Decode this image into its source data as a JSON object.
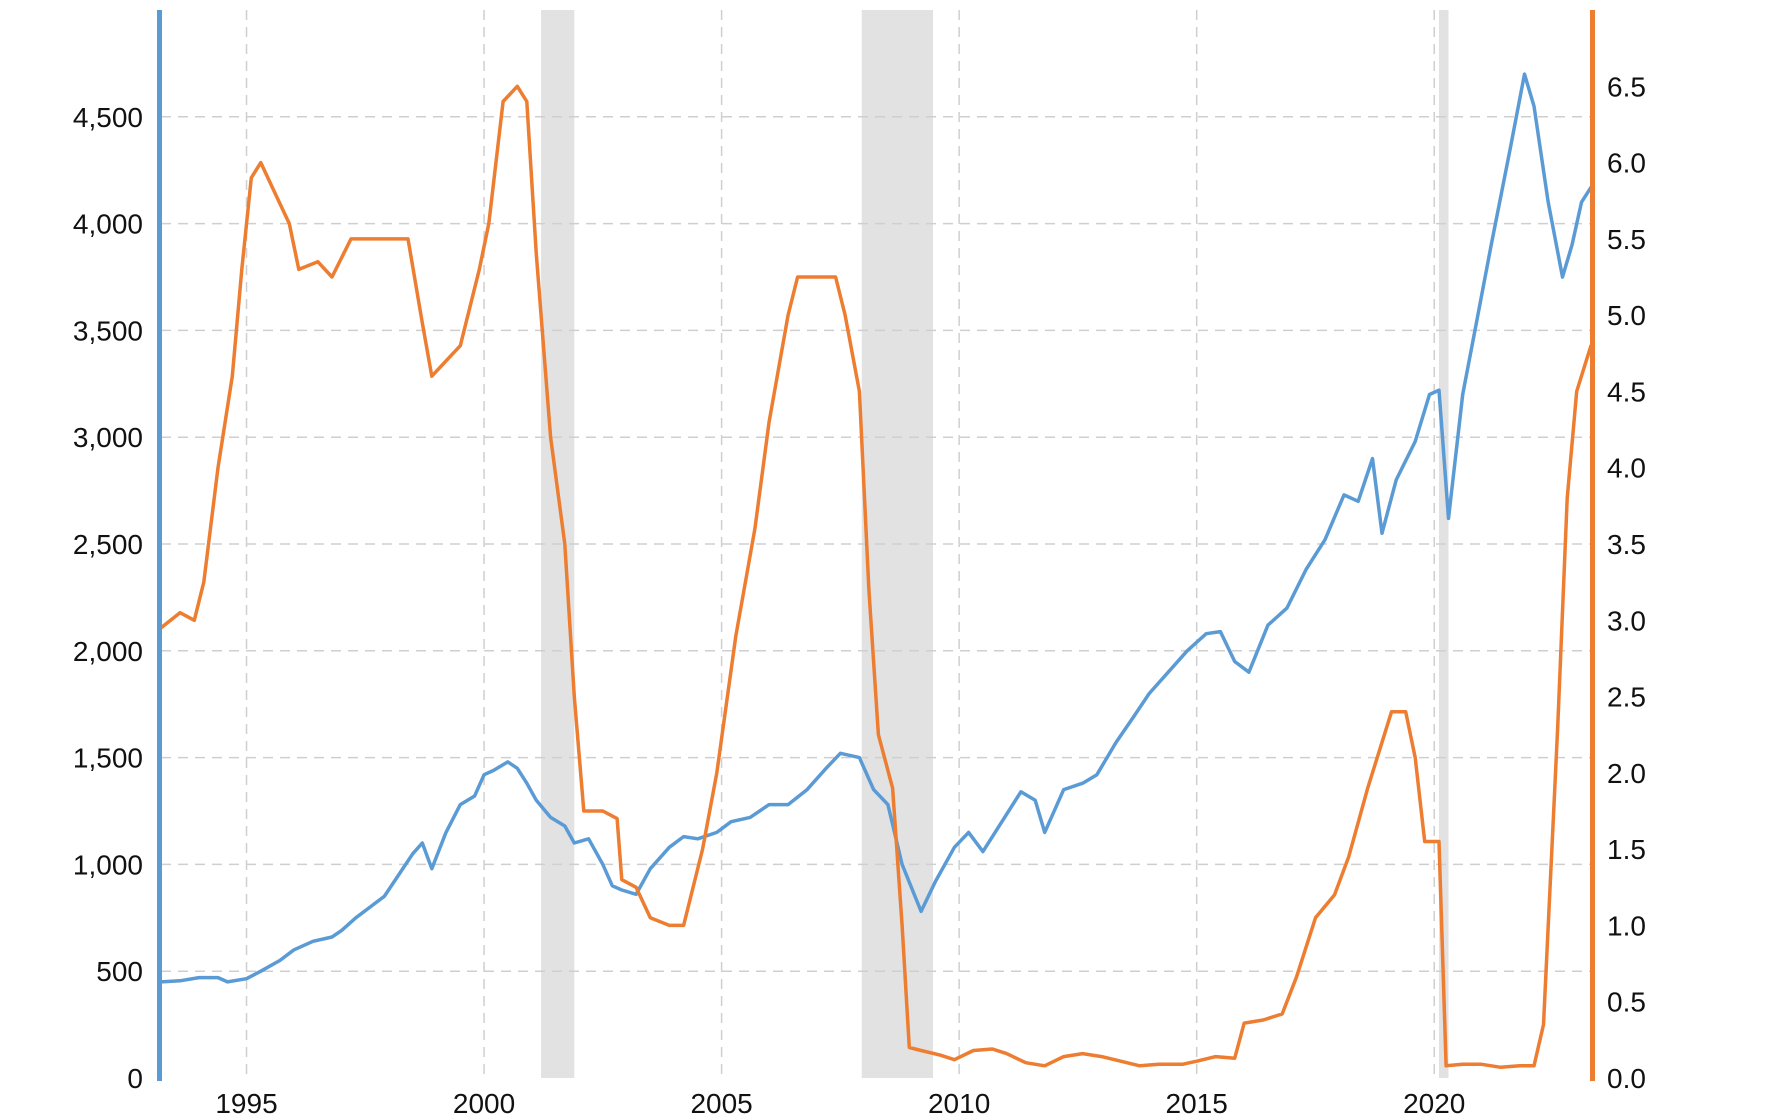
{
  "chart_data": {
    "type": "line",
    "title": "",
    "xlabel": "",
    "ylabel_left": "",
    "ylabel_right": "",
    "xlim": [
      1993.2,
      2023.3
    ],
    "ylim_left": [
      0,
      5000
    ],
    "ylim_right": [
      0,
      7.0
    ],
    "x_ticks": [
      "1995",
      "2000",
      "2005",
      "2010",
      "2015",
      "2020"
    ],
    "y_left_ticks": [
      "0",
      "500",
      "1,000",
      "1,500",
      "2,000",
      "2,500",
      "3,000",
      "3,500",
      "4,000",
      "4,500"
    ],
    "y_right_ticks": [
      "0.0",
      "0.5",
      "1.0",
      "1.5",
      "2.0",
      "2.5",
      "3.0",
      "3.5",
      "4.0",
      "4.5",
      "5.0",
      "5.5",
      "6.0",
      "6.5"
    ],
    "grid": true,
    "legend": "none",
    "recessions": [
      [
        2001.2,
        2001.9
      ],
      [
        2007.95,
        2009.45
      ],
      [
        2020.1,
        2020.3
      ]
    ],
    "series": [
      {
        "axis": "left",
        "color": "#5b9bd5",
        "points": [
          [
            1993.2,
            450
          ],
          [
            1993.6,
            455
          ],
          [
            1994.0,
            470
          ],
          [
            1994.4,
            470
          ],
          [
            1994.6,
            450
          ],
          [
            1995.0,
            465
          ],
          [
            1995.3,
            500
          ],
          [
            1995.7,
            550
          ],
          [
            1996.0,
            600
          ],
          [
            1996.4,
            640
          ],
          [
            1996.8,
            660
          ],
          [
            1997.0,
            690
          ],
          [
            1997.3,
            750
          ],
          [
            1997.6,
            800
          ],
          [
            1997.9,
            850
          ],
          [
            1998.2,
            950
          ],
          [
            1998.5,
            1050
          ],
          [
            1998.7,
            1100
          ],
          [
            1998.9,
            980
          ],
          [
            1999.2,
            1150
          ],
          [
            1999.5,
            1280
          ],
          [
            1999.8,
            1320
          ],
          [
            2000.0,
            1420
          ],
          [
            2000.2,
            1440
          ],
          [
            2000.5,
            1480
          ],
          [
            2000.7,
            1450
          ],
          [
            2000.9,
            1380
          ],
          [
            2001.1,
            1300
          ],
          [
            2001.4,
            1220
          ],
          [
            2001.7,
            1180
          ],
          [
            2001.9,
            1100
          ],
          [
            2002.2,
            1120
          ],
          [
            2002.5,
            1000
          ],
          [
            2002.7,
            900
          ],
          [
            2002.9,
            880
          ],
          [
            2003.2,
            860
          ],
          [
            2003.5,
            980
          ],
          [
            2003.9,
            1080
          ],
          [
            2004.2,
            1130
          ],
          [
            2004.5,
            1120
          ],
          [
            2004.9,
            1150
          ],
          [
            2005.2,
            1200
          ],
          [
            2005.6,
            1220
          ],
          [
            2006.0,
            1280
          ],
          [
            2006.4,
            1280
          ],
          [
            2006.8,
            1350
          ],
          [
            2007.2,
            1450
          ],
          [
            2007.5,
            1520
          ],
          [
            2007.9,
            1500
          ],
          [
            2008.2,
            1350
          ],
          [
            2008.5,
            1280
          ],
          [
            2008.8,
            1000
          ],
          [
            2009.2,
            780
          ],
          [
            2009.5,
            920
          ],
          [
            2009.9,
            1080
          ],
          [
            2010.2,
            1150
          ],
          [
            2010.5,
            1060
          ],
          [
            2010.9,
            1200
          ],
          [
            2011.3,
            1340
          ],
          [
            2011.6,
            1300
          ],
          [
            2011.8,
            1150
          ],
          [
            2012.2,
            1350
          ],
          [
            2012.6,
            1380
          ],
          [
            2012.9,
            1420
          ],
          [
            2013.3,
            1570
          ],
          [
            2013.7,
            1700
          ],
          [
            2014.0,
            1800
          ],
          [
            2014.4,
            1900
          ],
          [
            2014.8,
            2000
          ],
          [
            2015.2,
            2080
          ],
          [
            2015.5,
            2090
          ],
          [
            2015.8,
            1950
          ],
          [
            2016.1,
            1900
          ],
          [
            2016.5,
            2120
          ],
          [
            2016.9,
            2200
          ],
          [
            2017.3,
            2380
          ],
          [
            2017.7,
            2520
          ],
          [
            2018.1,
            2730
          ],
          [
            2018.4,
            2700
          ],
          [
            2018.7,
            2900
          ],
          [
            2018.9,
            2550
          ],
          [
            2019.2,
            2800
          ],
          [
            2019.6,
            2980
          ],
          [
            2019.9,
            3200
          ],
          [
            2020.1,
            3220
          ],
          [
            2020.3,
            2620
          ],
          [
            2020.6,
            3200
          ],
          [
            2020.9,
            3550
          ],
          [
            2021.2,
            3900
          ],
          [
            2021.6,
            4350
          ],
          [
            2021.9,
            4700
          ],
          [
            2022.1,
            4550
          ],
          [
            2022.4,
            4100
          ],
          [
            2022.7,
            3750
          ],
          [
            2022.9,
            3900
          ],
          [
            2023.1,
            4100
          ],
          [
            2023.3,
            4170
          ]
        ]
      },
      {
        "axis": "right",
        "color": "#ed7d31",
        "points": [
          [
            1993.2,
            2.95
          ],
          [
            1993.6,
            3.05
          ],
          [
            1993.9,
            3.0
          ],
          [
            1994.1,
            3.25
          ],
          [
            1994.4,
            4.0
          ],
          [
            1994.7,
            4.6
          ],
          [
            1994.9,
            5.3
          ],
          [
            1995.1,
            5.9
          ],
          [
            1995.3,
            6.0
          ],
          [
            1995.6,
            5.8
          ],
          [
            1995.9,
            5.6
          ],
          [
            1996.1,
            5.3
          ],
          [
            1996.5,
            5.35
          ],
          [
            1996.8,
            5.25
          ],
          [
            1997.2,
            5.5
          ],
          [
            1997.6,
            5.5
          ],
          [
            1998.0,
            5.5
          ],
          [
            1998.4,
            5.5
          ],
          [
            1998.7,
            4.95
          ],
          [
            1998.9,
            4.6
          ],
          [
            1999.2,
            4.7
          ],
          [
            1999.5,
            4.8
          ],
          [
            1999.9,
            5.3
          ],
          [
            2000.1,
            5.6
          ],
          [
            2000.4,
            6.4
          ],
          [
            2000.7,
            6.5
          ],
          [
            2000.9,
            6.4
          ],
          [
            2001.1,
            5.4
          ],
          [
            2001.4,
            4.2
          ],
          [
            2001.7,
            3.5
          ],
          [
            2001.9,
            2.5
          ],
          [
            2002.1,
            1.75
          ],
          [
            2002.5,
            1.75
          ],
          [
            2002.8,
            1.7
          ],
          [
            2002.9,
            1.3
          ],
          [
            2003.2,
            1.25
          ],
          [
            2003.5,
            1.05
          ],
          [
            2003.9,
            1.0
          ],
          [
            2004.2,
            1.0
          ],
          [
            2004.6,
            1.5
          ],
          [
            2004.9,
            2.0
          ],
          [
            2005.3,
            2.9
          ],
          [
            2005.7,
            3.6
          ],
          [
            2006.0,
            4.3
          ],
          [
            2006.4,
            5.0
          ],
          [
            2006.6,
            5.25
          ],
          [
            2007.0,
            5.25
          ],
          [
            2007.4,
            5.25
          ],
          [
            2007.6,
            5.0
          ],
          [
            2007.9,
            4.5
          ],
          [
            2008.1,
            3.2
          ],
          [
            2008.3,
            2.25
          ],
          [
            2008.6,
            1.9
          ],
          [
            2008.8,
            1.0
          ],
          [
            2008.95,
            0.2
          ],
          [
            2009.2,
            0.18
          ],
          [
            2009.6,
            0.15
          ],
          [
            2009.9,
            0.12
          ],
          [
            2010.3,
            0.18
          ],
          [
            2010.7,
            0.19
          ],
          [
            2011.0,
            0.16
          ],
          [
            2011.4,
            0.1
          ],
          [
            2011.8,
            0.08
          ],
          [
            2012.2,
            0.14
          ],
          [
            2012.6,
            0.16
          ],
          [
            2013.0,
            0.14
          ],
          [
            2013.4,
            0.11
          ],
          [
            2013.8,
            0.08
          ],
          [
            2014.2,
            0.09
          ],
          [
            2014.7,
            0.09
          ],
          [
            2015.0,
            0.11
          ],
          [
            2015.4,
            0.14
          ],
          [
            2015.8,
            0.13
          ],
          [
            2016.0,
            0.36
          ],
          [
            2016.4,
            0.38
          ],
          [
            2016.8,
            0.42
          ],
          [
            2017.1,
            0.66
          ],
          [
            2017.5,
            1.05
          ],
          [
            2017.9,
            1.2
          ],
          [
            2018.2,
            1.45
          ],
          [
            2018.6,
            1.9
          ],
          [
            2018.9,
            2.2
          ],
          [
            2019.1,
            2.4
          ],
          [
            2019.4,
            2.4
          ],
          [
            2019.6,
            2.1
          ],
          [
            2019.8,
            1.55
          ],
          [
            2020.1,
            1.55
          ],
          [
            2020.25,
            0.08
          ],
          [
            2020.6,
            0.09
          ],
          [
            2021.0,
            0.09
          ],
          [
            2021.4,
            0.07
          ],
          [
            2021.8,
            0.08
          ],
          [
            2022.1,
            0.08
          ],
          [
            2022.3,
            0.35
          ],
          [
            2022.6,
            2.3
          ],
          [
            2022.8,
            3.8
          ],
          [
            2023.0,
            4.5
          ],
          [
            2023.2,
            4.7
          ],
          [
            2023.3,
            4.8
          ]
        ]
      }
    ]
  },
  "colors": {
    "left_axis": "#5b9bd5",
    "right_axis": "#ed7d31",
    "recession": "#e2e2e2"
  }
}
